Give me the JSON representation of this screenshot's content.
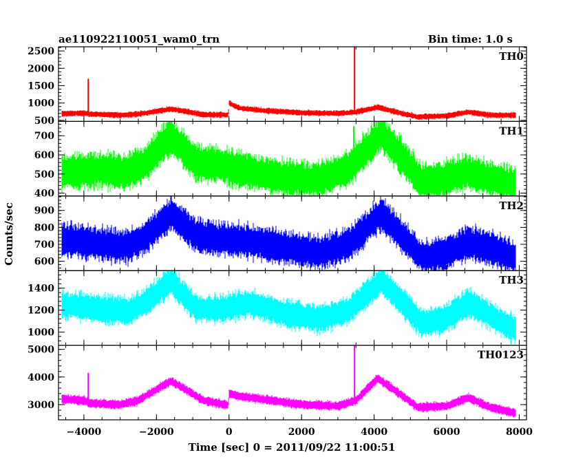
{
  "title": "ae110922110051_wam0_trn",
  "bin_time": "Bin time: 1.0 s",
  "xlabel": "Time [sec] 0 = 2011/09/22 11:00:51",
  "ylabel": "Counts/sec",
  "chart_data": {
    "type": "line",
    "x_range": [
      -4700,
      8200
    ],
    "x_ticks": [
      -4000,
      -2000,
      0,
      2000,
      4000,
      6000,
      8000
    ],
    "x_tick_labels": [
      "−4000",
      "−2000",
      "0",
      "2000",
      "4000",
      "6000",
      "8000"
    ],
    "panels": [
      {
        "name": "TH0",
        "color": "#ff0000",
        "ylim": [
          470,
          2620
        ],
        "yticks": [
          500,
          1000,
          1500,
          2000,
          2500
        ],
        "noise": 35,
        "x": [
          -4600,
          -4000,
          -3900,
          -3850,
          -3000,
          -2500,
          -2000,
          -1600,
          -1200,
          -700,
          -20,
          0,
          300,
          1000,
          2000,
          3000,
          3500,
          4100,
          4800,
          5200,
          6000,
          6600,
          7200,
          7900
        ],
        "y": [
          690,
          710,
          700,
          680,
          650,
          680,
          760,
          830,
          760,
          660,
          660,
          1000,
          850,
          780,
          720,
          700,
          740,
          880,
          690,
          600,
          630,
          740,
          650,
          650
        ],
        "spikes": [
          {
            "x": -3880,
            "y": 1700
          },
          {
            "x": 3460,
            "y": 2620
          }
        ]
      },
      {
        "name": "TH1",
        "color": "#00ff00",
        "ylim": [
          385,
          775
        ],
        "yticks": [
          400,
          500,
          600,
          700
        ],
        "noise": 40,
        "x": [
          -4600,
          -3500,
          -2800,
          -2300,
          -1600,
          -900,
          -300,
          400,
          1500,
          2500,
          3300,
          4200,
          4900,
          5300,
          5900,
          6600,
          7300,
          7900
        ],
        "y": [
          510,
          520,
          510,
          560,
          700,
          560,
          550,
          520,
          480,
          470,
          530,
          710,
          560,
          460,
          470,
          510,
          470,
          440
        ],
        "spikes": [
          {
            "x": 3440,
            "y": 750
          }
        ]
      },
      {
        "name": "TH2",
        "color": "#0000ff",
        "ylim": [
          545,
          985
        ],
        "yticks": [
          600,
          700,
          800,
          900
        ],
        "noise": 42,
        "x": [
          -4600,
          -3500,
          -2800,
          -2300,
          -1600,
          -900,
          -300,
          500,
          1500,
          2500,
          3300,
          4200,
          4900,
          5300,
          5900,
          6600,
          7300,
          7900
        ],
        "y": [
          730,
          700,
          690,
          740,
          880,
          750,
          730,
          720,
          680,
          650,
          700,
          880,
          720,
          630,
          640,
          710,
          670,
          620
        ],
        "spikes": []
      },
      {
        "name": "TH3",
        "color": "#00ffff",
        "ylim": [
          880,
          1560
        ],
        "yticks": [
          1000,
          1200,
          1400
        ],
        "noise": 55,
        "x": [
          -4600,
          -3500,
          -2800,
          -2300,
          -1600,
          -900,
          -300,
          600,
          1500,
          2500,
          3300,
          4200,
          4900,
          5300,
          5900,
          6600,
          7300,
          7900
        ],
        "y": [
          1250,
          1210,
          1190,
          1270,
          1470,
          1210,
          1210,
          1260,
          1170,
          1120,
          1200,
          1470,
          1230,
          1080,
          1110,
          1270,
          1130,
          1020
        ],
        "spikes": []
      },
      {
        "name": "TH0123",
        "color": "#ff00ff",
        "ylim": [
          2450,
          5150
        ],
        "yticks": [
          3000,
          4000,
          5000
        ],
        "noise": 70,
        "x": [
          -4600,
          -4000,
          -3900,
          -3850,
          -3000,
          -2500,
          -2000,
          -1600,
          -1200,
          -700,
          -20,
          0,
          300,
          1000,
          2000,
          3000,
          3500,
          4100,
          4800,
          5200,
          6000,
          6600,
          7200,
          7900
        ],
        "y": [
          3200,
          3150,
          3100,
          3050,
          3000,
          3150,
          3550,
          3850,
          3550,
          3150,
          2980,
          3400,
          3300,
          3180,
          3000,
          2950,
          3150,
          3950,
          3300,
          2900,
          2950,
          3250,
          2900,
          2700
        ],
        "spikes": [
          {
            "x": -3880,
            "y": 4150
          },
          {
            "x": 3460,
            "y": 5150
          }
        ]
      }
    ]
  }
}
